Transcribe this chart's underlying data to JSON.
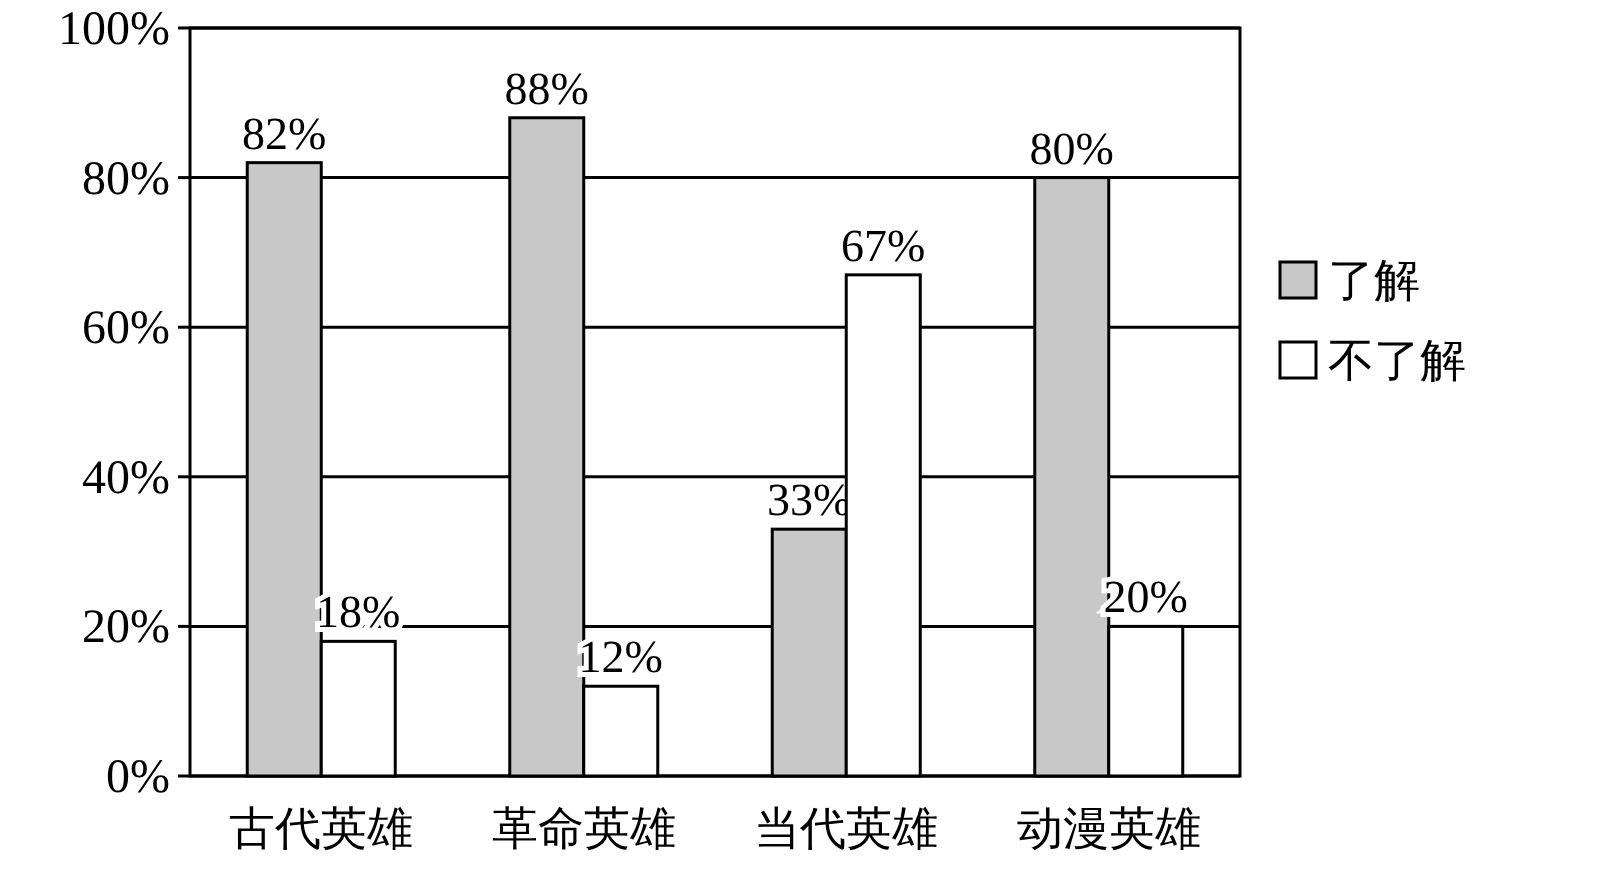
{
  "chart_data": {
    "type": "bar",
    "categories": [
      "古代英雄",
      "革命英雄",
      "当代英雄",
      "动漫英雄"
    ],
    "series": [
      {
        "name": "了解",
        "color": "#c8c8c8",
        "values": [
          82,
          88,
          33,
          80
        ],
        "value_labels": [
          "82%",
          "88%",
          "33%",
          "80%"
        ]
      },
      {
        "name": "不了解",
        "color": "#ffffff",
        "values": [
          18,
          12,
          67,
          20
        ],
        "value_labels": [
          "18%",
          "12%",
          "67%",
          "20%"
        ]
      }
    ],
    "ylim": [
      0,
      100
    ],
    "yticks": [
      {
        "value": 0,
        "label": "0%"
      },
      {
        "value": 20,
        "label": "20%"
      },
      {
        "value": 40,
        "label": "40%"
      },
      {
        "value": 60,
        "label": "60%"
      },
      {
        "value": 80,
        "label": "80%"
      },
      {
        "value": 100,
        "label": "100%"
      }
    ],
    "grid": "y",
    "legend": "right"
  }
}
